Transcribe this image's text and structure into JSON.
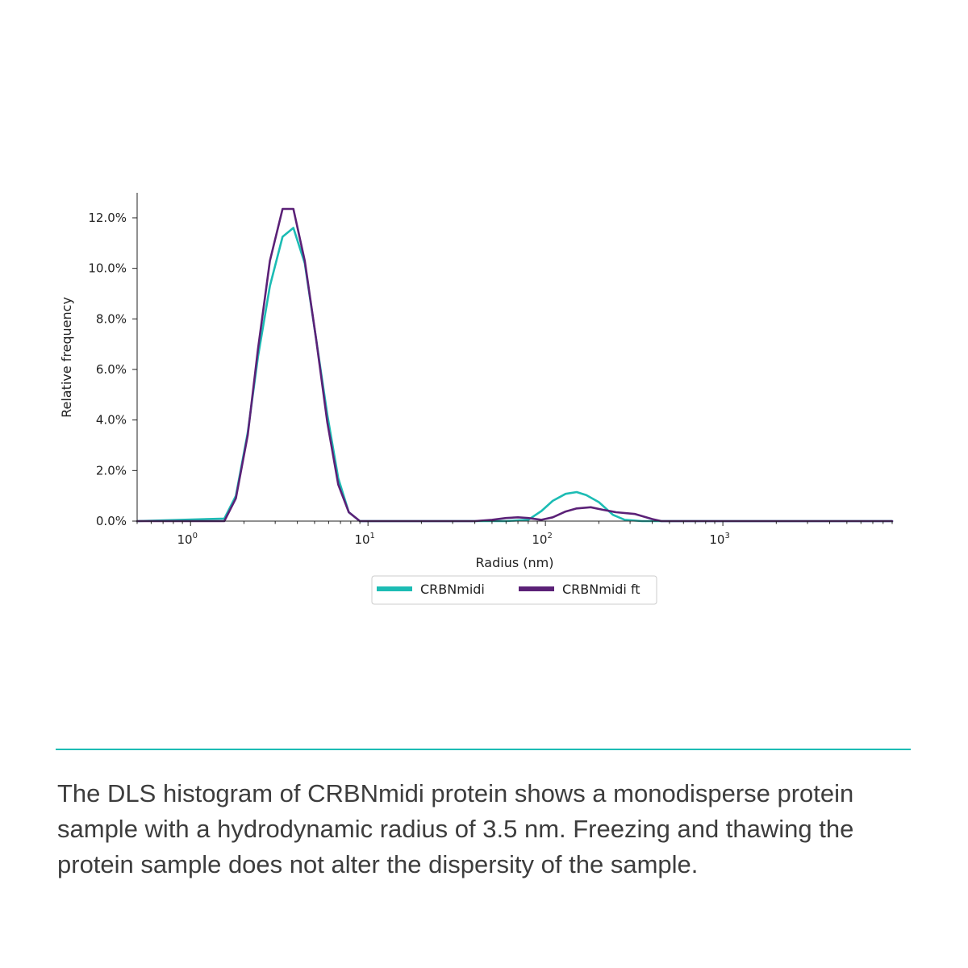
{
  "colors": {
    "accent": "#1cbcb4",
    "series_1": "#1cbcb4",
    "series_2": "#5b2177",
    "text": "#3d3d3d"
  },
  "chart_data": {
    "type": "line",
    "xlabel": "Radius (nm)",
    "ylabel": "Relative frequency",
    "x_scale": "log",
    "xlim": [
      0.5,
      9000
    ],
    "ylim": [
      0,
      0.13
    ],
    "x_ticks": [
      {
        "value": 1,
        "base": "10",
        "exp": "0"
      },
      {
        "value": 10,
        "base": "10",
        "exp": "1"
      },
      {
        "value": 100,
        "base": "10",
        "exp": "2"
      },
      {
        "value": 1000,
        "base": "10",
        "exp": "3"
      }
    ],
    "y_ticks": [
      {
        "value": 0,
        "label": "0.0%"
      },
      {
        "value": 0.02,
        "label": "2.0%"
      },
      {
        "value": 0.04,
        "label": "4.0%"
      },
      {
        "value": 0.06,
        "label": "6.0%"
      },
      {
        "value": 0.08,
        "label": "8.0%"
      },
      {
        "value": 0.1,
        "label": "10.0%"
      },
      {
        "value": 0.12,
        "label": "12.0%"
      }
    ],
    "legend_position": "bottom-center",
    "series": [
      {
        "name": "CRBNmidi",
        "color": "#1cbcb4",
        "x": [
          0.5,
          1.55,
          1.8,
          2.1,
          2.4,
          2.8,
          3.3,
          3.8,
          4.4,
          5.1,
          5.9,
          6.8,
          7.8,
          9.0,
          30,
          60,
          80,
          95,
          110,
          130,
          150,
          170,
          200,
          240,
          280,
          350,
          9000
        ],
        "y": [
          0,
          0.001,
          0.01,
          0.035,
          0.065,
          0.093,
          0.1125,
          0.116,
          0.102,
          0.072,
          0.042,
          0.017,
          0.0035,
          0,
          0,
          0,
          0.0005,
          0.004,
          0.008,
          0.0108,
          0.0115,
          0.0103,
          0.0075,
          0.0025,
          0.0005,
          0,
          0
        ]
      },
      {
        "name": "CRBNmidi ft",
        "color": "#5b2177",
        "x": [
          0.5,
          1.55,
          1.8,
          2.1,
          2.4,
          2.8,
          3.3,
          3.8,
          4.4,
          5.1,
          5.9,
          6.8,
          7.8,
          9.0,
          40,
          50,
          60,
          70,
          80,
          95,
          110,
          130,
          150,
          180,
          210,
          250,
          320,
          400,
          450,
          9000
        ],
        "y": [
          0,
          0,
          0.009,
          0.034,
          0.068,
          0.103,
          0.1235,
          0.1235,
          0.103,
          0.072,
          0.039,
          0.0145,
          0.0035,
          0,
          0,
          0.0005,
          0.0012,
          0.0015,
          0.0012,
          0.0005,
          0.0015,
          0.0038,
          0.005,
          0.0055,
          0.0045,
          0.0035,
          0.0028,
          0.0008,
          0,
          0
        ]
      }
    ]
  },
  "caption": {
    "text": "The DLS histogram of CRBNmidi protein shows a monodisperse protein sample with a hydrodynamic radius of 3.5 nm. Freezing and thawing the protein sample does not alter the dispersity of the sample."
  }
}
